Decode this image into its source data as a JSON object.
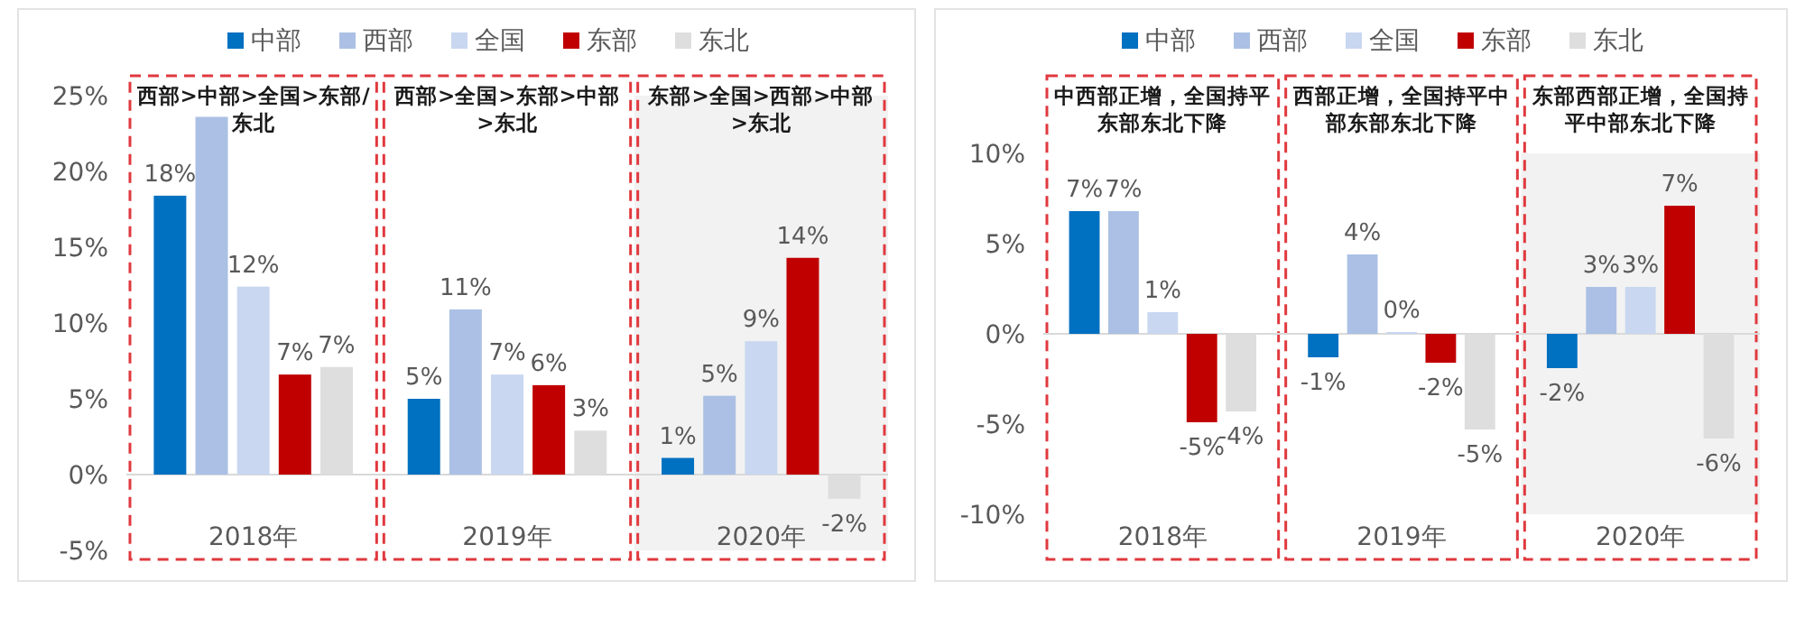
{
  "chart_data": [
    {
      "type": "bar",
      "categories": [
        "2018年",
        "2019年",
        "2020年"
      ],
      "series": [
        {
          "name": "中部",
          "color": "#0070c0",
          "values": [
            18.4,
            5.0,
            1.1
          ],
          "value_labels": [
            "18%",
            "5%",
            "1%"
          ]
        },
        {
          "name": "西部",
          "color": "#abc0e4",
          "values": [
            23.6,
            10.9,
            5.2
          ],
          "value_labels": [
            null,
            "11%",
            "5%"
          ]
        },
        {
          "name": "全国",
          "color": "#c9d7f0",
          "values": [
            12.4,
            6.6,
            8.8
          ],
          "value_labels": [
            "12%",
            "7%",
            "9%"
          ]
        },
        {
          "name": "东部",
          "color": "#c00000",
          "values": [
            6.6,
            5.9,
            14.3
          ],
          "value_labels": [
            "7%",
            "6%",
            "14%"
          ]
        },
        {
          "name": "东北",
          "color": "#dedede",
          "values": [
            7.1,
            2.9,
            -1.6
          ],
          "value_labels": [
            "7%",
            "3%",
            "-2%"
          ]
        }
      ],
      "ylim": [
        -5,
        25
      ],
      "yticks": [
        {
          "value": -5,
          "label": "-5%"
        },
        {
          "value": 0,
          "label": "0%"
        },
        {
          "value": 5,
          "label": "5%"
        },
        {
          "value": 10,
          "label": "10%"
        },
        {
          "value": 15,
          "label": "15%"
        },
        {
          "value": 20,
          "label": "20%"
        },
        {
          "value": 25,
          "label": "25%"
        }
      ],
      "bands": [
        {
          "axis": "x",
          "from": "2020年",
          "to": "2020年",
          "color": "#f2f2f2"
        }
      ],
      "annotations": [
        "西部>中部>全国>东部/东北",
        "西部>全国>东部>中部>东北",
        "东部>全国>西部>中部>东北"
      ],
      "ref_lines": [
        {
          "axis": "y",
          "value": 0,
          "color": "#d9d9d9"
        }
      ],
      "legend": "top"
    },
    {
      "type": "bar",
      "categories": [
        "2018年",
        "2019年",
        "2020年"
      ],
      "series": [
        {
          "name": "中部",
          "color": "#0070c0",
          "values": [
            6.8,
            -1.3,
            -1.9
          ],
          "value_labels": [
            "7%",
            "-1%",
            "-2%"
          ]
        },
        {
          "name": "西部",
          "color": "#abc0e4",
          "values": [
            6.8,
            4.4,
            2.6
          ],
          "value_labels": [
            "7%",
            "4%",
            "3%"
          ]
        },
        {
          "name": "全国",
          "color": "#c9d7f0",
          "values": [
            1.2,
            0.1,
            2.6
          ],
          "value_labels": [
            "1%",
            "0%",
            "3%"
          ]
        },
        {
          "name": "东部",
          "color": "#c00000",
          "values": [
            -4.9,
            -1.6,
            7.1
          ],
          "value_labels": [
            "-5%",
            "-2%",
            "7%"
          ]
        },
        {
          "name": "东北",
          "color": "#dedede",
          "values": [
            -4.3,
            -5.3,
            -5.8
          ],
          "value_labels": [
            "-4%",
            "-5%",
            "-6%"
          ]
        }
      ],
      "ylim": [
        -10,
        10
      ],
      "yticks": [
        {
          "value": -10,
          "label": "-10%"
        },
        {
          "value": -5,
          "label": "-5%"
        },
        {
          "value": 0,
          "label": "0%"
        },
        {
          "value": 5,
          "label": "5%"
        },
        {
          "value": 10,
          "label": "10%"
        }
      ],
      "bands": [
        {
          "axis": "x",
          "from": "2020年",
          "to": "2020年",
          "color": "#f2f2f2"
        }
      ],
      "annotations": [
        "中西部正增，全国持平东部东北下降",
        "西部正增，全国持平中部东部东北下降",
        "东部西部正增，全国持平中部东北下降"
      ],
      "ref_lines": [
        {
          "axis": "y",
          "value": 0,
          "color": "#d9d9d9"
        }
      ],
      "legend": "top"
    }
  ]
}
